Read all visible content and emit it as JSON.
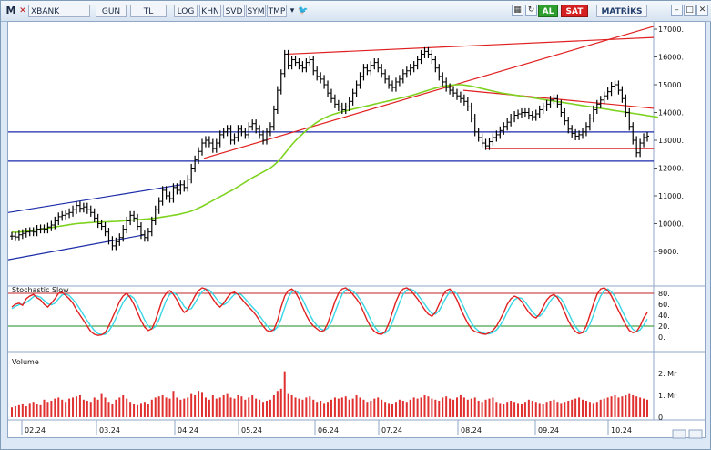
{
  "toolbar": {
    "m_label": "M",
    "symbol": "XBANK",
    "period": "GUN",
    "currency": "TL",
    "buttons": [
      "LOG",
      "KHN",
      "SVD",
      "SYM",
      "TMP"
    ],
    "buy_label": "AL",
    "sell_label": "SAT",
    "brand": "MATRİKS"
  },
  "colors": {
    "price_bars": "#000000",
    "ma_line": "#7ed321",
    "trend_red": "#e02020",
    "trend_blue": "#1a2aa8",
    "stoch_k": "#e02020",
    "stoch_d": "#39d6e6",
    "volume_bars": "#e03030",
    "buy_green": "#2e9e2e",
    "sell_red": "#d42020"
  },
  "price_axis": [
    "17000.",
    "16000.",
    "15000.",
    "14000.",
    "13000.",
    "12000.",
    "11000.",
    "10000.",
    "9000."
  ],
  "stoch": {
    "title": "Stochastic Slow",
    "axis": [
      "80.",
      "60.",
      "40.",
      "20.",
      "0."
    ]
  },
  "volume": {
    "title": "Volume",
    "axis": [
      "2. Mr",
      "1. Mr",
      "0"
    ]
  },
  "date_axis": [
    "02.24",
    "03.24",
    "04.24",
    "05.24",
    "06.24",
    "07.24",
    "08.24",
    "09.24",
    "10.24"
  ],
  "chart_data": {
    "type": "candlestick",
    "ylim": [
      8300,
      17400
    ],
    "closes": [
      9550,
      9520,
      9600,
      9650,
      9700,
      9720,
      9700,
      9800,
      9820,
      9800,
      9880,
      9950,
      10100,
      10250,
      10300,
      10350,
      10400,
      10500,
      10650,
      10550,
      10600,
      10500,
      10400,
      10200,
      10000,
      9900,
      9700,
      9400,
      9200,
      9350,
      9500,
      9800,
      10100,
      10300,
      10200,
      9900,
      9600,
      9500,
      9700,
      10100,
      10500,
      10800,
      11200,
      11000,
      10900,
      11300,
      11200,
      11400,
      11300,
      11600,
      12000,
      12300,
      12600,
      12900,
      13000,
      12900,
      12700,
      12900,
      13200,
      13300,
      13400,
      13000,
      13100,
      13400,
      13300,
      13200,
      13500,
      13600,
      13400,
      13200,
      13000,
      13300,
      13500,
      14100,
      14800,
      15400,
      16100,
      15700,
      15900,
      15800,
      15700,
      15600,
      15800,
      15900,
      15500,
      15300,
      15200,
      15000,
      14700,
      14500,
      14300,
      14200,
      14100,
      14200,
      14400,
      14700,
      15000,
      15300,
      15600,
      15500,
      15700,
      15800,
      15600,
      15400,
      15200,
      15000,
      14900,
      15100,
      15200,
      15400,
      15500,
      15600,
      15700,
      15900,
      16100,
      16200,
      16100,
      15900,
      15600,
      15300,
      15100,
      14900,
      14800,
      14700,
      14600,
      14500,
      14400,
      14200,
      13800,
      13300,
      13100,
      12900,
      12800,
      12950,
      13100,
      13200,
      13350,
      13500,
      13650,
      13800,
      13900,
      13950,
      14000,
      14000,
      13900,
      13850,
      13950,
      14100,
      14200,
      14300,
      14450,
      14500,
      14300,
      14000,
      13700,
      13400,
      13250,
      13150,
      13200,
      13300,
      13500,
      13800,
      14100,
      14300,
      14450,
      14600,
      14750,
      14950,
      15000,
      14800,
      14500,
      14000,
      13500,
      13000,
      12550,
      12900,
      13100,
      13150
    ],
    "ma": [
      9700,
      9690,
      9700,
      9710,
      9720,
      9740,
      9760,
      9780,
      9800,
      9820,
      9840,
      9860,
      9880,
      9900,
      9920,
      9940,
      9960,
      9980,
      10000,
      10010,
      10020,
      10030,
      10040,
      10050,
      10055,
      10060,
      10065,
      10070,
      10075,
      10080,
      10090,
      10100,
      10110,
      10120,
      10130,
      10140,
      10150,
      10160,
      10170,
      10185,
      10200,
      10220,
      10240,
      10260,
      10280,
      10300,
      10320,
      10350,
      10380,
      10410,
      10450,
      10500,
      10560,
      10620,
      10690,
      10760,
      10830,
      10900,
      10970,
      11040,
      11110,
      11180,
      11250,
      11330,
      11410,
      11490,
      11570,
      11650,
      11720,
      11790,
      11860,
      11930,
      12000,
      12100,
      12220,
      12360,
      12520,
      12680,
      12840,
      12980,
      13110,
      13230,
      13350,
      13460,
      13560,
      13650,
      13730,
      13800,
      13860,
      13910,
      13950,
      13990,
      14030,
      14060,
      14090,
      14120,
      14150,
      14180,
      14210,
      14240,
      14270,
      14300,
      14330,
      14360,
      14390,
      14420,
      14450,
      14480,
      14510,
      14540,
      14570,
      14600,
      14640,
      14680,
      14720,
      14760,
      14800,
      14840,
      14880,
      14910,
      14940,
      14960,
      14980,
      14990,
      15000,
      15000,
      14990,
      14970,
      14950,
      14920,
      14890,
      14860,
      14830,
      14800,
      14770,
      14740,
      14710,
      14690,
      14670,
      14650,
      14630,
      14610,
      14590,
      14570,
      14550,
      14530,
      14510,
      14490,
      14470,
      14450,
      14430,
      14410,
      14390,
      14370,
      14350,
      14330,
      14310,
      14290,
      14270,
      14250,
      14230,
      14210,
      14190,
      14170,
      14150,
      14130,
      14110,
      14090,
      14070,
      14050,
      14030,
      14010,
      13990,
      13970,
      13950,
      13930,
      13910,
      13890,
      13870,
      13850,
      13830
    ],
    "stoch_k": [
      55,
      60,
      62,
      58,
      70,
      75,
      78,
      72,
      68,
      60,
      55,
      62,
      70,
      80,
      82,
      76,
      70,
      62,
      50,
      40,
      30,
      20,
      10,
      5,
      3,
      4,
      8,
      20,
      35,
      50,
      65,
      75,
      80,
      72,
      60,
      45,
      30,
      18,
      12,
      15,
      30,
      50,
      70,
      80,
      85,
      78,
      68,
      55,
      45,
      50,
      62,
      75,
      85,
      90,
      88,
      80,
      70,
      60,
      55,
      62,
      72,
      80,
      82,
      78,
      70,
      62,
      55,
      48,
      40,
      30,
      20,
      12,
      10,
      14,
      30,
      55,
      75,
      85,
      88,
      82,
      70,
      55,
      40,
      28,
      20,
      15,
      10,
      12,
      25,
      45,
      65,
      80,
      88,
      90,
      85,
      78,
      70,
      60,
      45,
      30,
      18,
      10,
      6,
      5,
      10,
      25,
      45,
      65,
      80,
      88,
      90,
      86,
      78,
      70,
      60,
      50,
      42,
      38,
      45,
      60,
      75,
      85,
      88,
      80,
      68,
      52,
      38,
      25,
      15,
      10,
      8,
      6,
      5,
      8,
      12,
      20,
      32,
      45,
      60,
      70,
      75,
      72,
      65,
      55,
      45,
      38,
      35,
      42,
      55,
      68,
      75,
      78,
      72,
      60,
      45,
      30,
      18,
      10,
      6,
      8,
      20,
      40,
      60,
      78,
      88,
      90,
      85,
      75,
      62,
      48,
      35,
      22,
      12,
      8,
      10,
      20,
      35,
      45
    ],
    "stoch_d": [
      52,
      56,
      59,
      60,
      63,
      68,
      74,
      75,
      73,
      67,
      61,
      59,
      62,
      70,
      77,
      79,
      76,
      69,
      61,
      51,
      40,
      30,
      20,
      12,
      6,
      5,
      5,
      11,
      21,
      35,
      50,
      63,
      73,
      76,
      71,
      59,
      45,
      31,
      20,
      15,
      19,
      32,
      50,
      67,
      78,
      81,
      77,
      67,
      56,
      50,
      52,
      62,
      74,
      83,
      88,
      86,
      79,
      70,
      62,
      59,
      63,
      71,
      78,
      80,
      77,
      70,
      62,
      55,
      48,
      39,
      30,
      21,
      14,
      12,
      18,
      33,
      53,
      72,
      83,
      85,
      80,
      69,
      55,
      41,
      29,
      21,
      15,
      12,
      16,
      27,
      45,
      63,
      78,
      86,
      88,
      84,
      78,
      69,
      58,
      45,
      31,
      19,
      11,
      7,
      7,
      13,
      27,
      45,
      63,
      78,
      86,
      88,
      85,
      78,
      69,
      60,
      51,
      43,
      42,
      48,
      60,
      73,
      83,
      84,
      79,
      67,
      53,
      38,
      26,
      17,
      11,
      8,
      6,
      6,
      8,
      13,
      21,
      32,
      46,
      58,
      68,
      72,
      71,
      64,
      55,
      46,
      39,
      38,
      44,
      55,
      66,
      74,
      75,
      70,
      59,
      45,
      31,
      19,
      11,
      8,
      11,
      23,
      40,
      59,
      75,
      85,
      88,
      83,
      74,
      62,
      48,
      35,
      23,
      14,
      10,
      13,
      22,
      33
    ],
    "volume": [
      0.45,
      0.5,
      0.55,
      0.6,
      0.5,
      0.65,
      0.7,
      0.6,
      0.55,
      0.8,
      0.7,
      0.75,
      0.85,
      0.9,
      0.8,
      0.7,
      0.85,
      0.9,
      0.95,
      1.0,
      0.8,
      0.75,
      0.7,
      0.9,
      0.8,
      1.1,
      0.9,
      0.7,
      0.6,
      0.8,
      0.9,
      1.0,
      0.85,
      0.7,
      0.6,
      0.55,
      0.65,
      0.7,
      0.6,
      0.8,
      0.9,
      0.95,
      1.0,
      0.9,
      0.85,
      1.2,
      0.9,
      0.8,
      0.85,
      0.9,
      1.1,
      1.0,
      1.2,
      1.15,
      0.9,
      0.8,
      1.0,
      0.85,
      0.9,
      1.0,
      1.1,
      0.9,
      0.85,
      1.0,
      0.95,
      0.8,
      0.9,
      1.0,
      0.85,
      0.8,
      0.7,
      0.75,
      0.8,
      1.0,
      1.2,
      1.3,
      2.1,
      1.1,
      1.0,
      0.9,
      0.85,
      0.8,
      0.9,
      0.95,
      0.8,
      0.7,
      0.75,
      0.65,
      0.7,
      0.8,
      0.9,
      0.85,
      0.9,
      0.95,
      0.8,
      0.85,
      1.0,
      0.9,
      0.8,
      0.7,
      0.75,
      0.85,
      0.9,
      0.8,
      0.7,
      0.65,
      0.6,
      0.7,
      0.8,
      0.75,
      0.7,
      0.8,
      0.9,
      0.85,
      0.9,
      1.0,
      0.95,
      0.85,
      0.8,
      0.75,
      0.9,
      0.95,
      0.85,
      0.8,
      0.9,
      1.0,
      0.9,
      0.8,
      0.85,
      0.9,
      0.75,
      0.7,
      0.8,
      0.85,
      0.9,
      0.7,
      0.65,
      0.6,
      0.7,
      0.75,
      0.7,
      0.65,
      0.6,
      0.7,
      0.8,
      0.75,
      0.7,
      0.65,
      0.6,
      0.7,
      0.75,
      0.8,
      0.7,
      0.65,
      0.7,
      0.75,
      0.8,
      0.85,
      0.9,
      0.8,
      0.75,
      0.7,
      0.65,
      0.7,
      0.8,
      0.85,
      0.9,
      0.95,
      1.0,
      0.9,
      0.95,
      1.0,
      1.1,
      1.0,
      0.95,
      0.9,
      0.85,
      0.8,
      0.9,
      0.85
    ]
  }
}
